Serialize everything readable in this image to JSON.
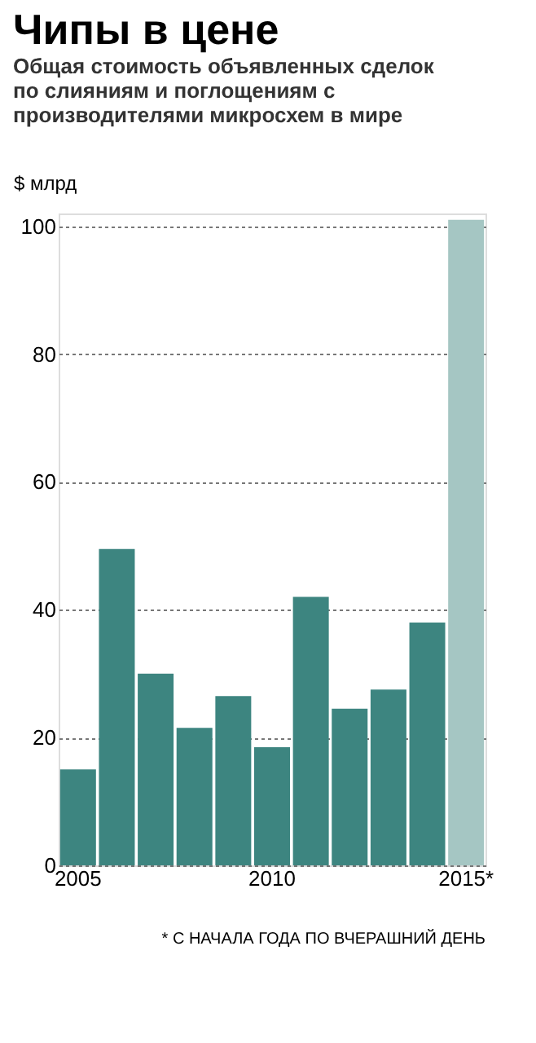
{
  "chart_data": {
    "type": "bar",
    "title": "Чипы в цене",
    "subtitle": "Общая стоимость объявленных сделок по слияниям и поглощениям с производителями микросхем в мире",
    "ylabel": "$ млрд",
    "categories": [
      "2005",
      null,
      null,
      null,
      null,
      "2010",
      null,
      null,
      null,
      null,
      "2015*"
    ],
    "values": [
      15,
      49.5,
      30,
      21.5,
      26.5,
      18.5,
      42,
      24.5,
      27.5,
      38,
      101
    ],
    "colors": [
      "#3d8580",
      "#3d8580",
      "#3d8580",
      "#3d8580",
      "#3d8580",
      "#3d8580",
      "#3d8580",
      "#3d8580",
      "#3d8580",
      "#3d8580",
      "#a5c6c3"
    ],
    "ylim": [
      0,
      102
    ],
    "yticks": [
      0,
      20,
      40,
      60,
      80,
      100
    ],
    "grid": "y",
    "annotations": [
      "* С НАЧАЛА ГОДА ПО ВЧЕРАШНИЙ ДЕНЬ"
    ]
  }
}
